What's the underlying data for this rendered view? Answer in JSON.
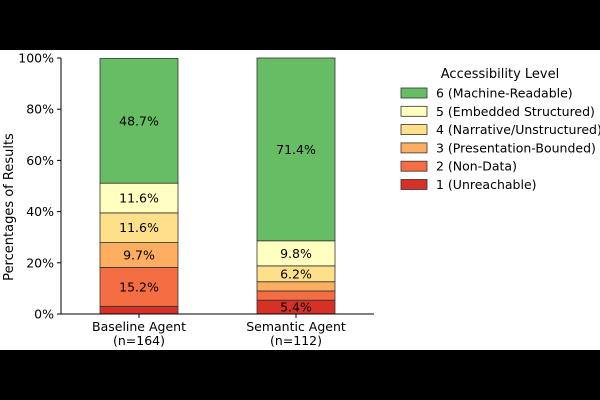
{
  "chart_data": {
    "type": "bar",
    "stacked": true,
    "categories": [
      "Baseline Agent\n(n=164)",
      "Semantic Agent\n(n=112)"
    ],
    "ylabel": "Percentages of Results",
    "ylim": [
      0,
      100
    ],
    "yticks": [
      "0%",
      "20%",
      "40%",
      "60%",
      "80%",
      "100%"
    ],
    "legend": {
      "title": "Accessibility Level",
      "placement": "right"
    },
    "series": [
      {
        "name": "1 (Unreachable)",
        "color": "#d73027",
        "values": [
          3.0,
          5.4
        ],
        "labels": [
          "",
          "5.4%"
        ]
      },
      {
        "name": "2 (Non-Data)",
        "color": "#f46d43",
        "values": [
          15.2,
          3.6
        ],
        "labels": [
          "15.2%",
          ""
        ]
      },
      {
        "name": "3 (Presentation-Bounded)",
        "color": "#fdae61",
        "values": [
          9.7,
          3.6
        ],
        "labels": [
          "9.7%",
          ""
        ]
      },
      {
        "name": "4 (Narrative/Unstructured)",
        "color": "#fee08b",
        "values": [
          11.6,
          6.2
        ],
        "labels": [
          "11.6%",
          "6.2%"
        ]
      },
      {
        "name": "5 (Embedded Structured)",
        "color": "#ffffbf",
        "values": [
          11.6,
          9.8
        ],
        "labels": [
          "11.6%",
          "9.8%"
        ]
      },
      {
        "name": "6 (Machine-Readable)",
        "color": "#66bd63",
        "values": [
          48.7,
          71.4
        ],
        "labels": [
          "48.7%",
          "71.4%"
        ]
      }
    ]
  }
}
